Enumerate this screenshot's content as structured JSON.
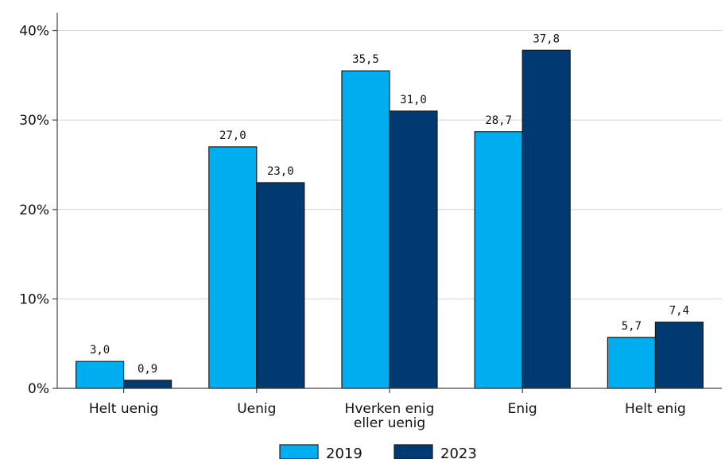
{
  "chart_data": {
    "type": "bar",
    "categories": [
      "Helt uenig",
      "Uenig",
      "Hverken enig eller uenig",
      "Enig",
      "Helt enig"
    ],
    "category_lines": [
      [
        "Helt uenig"
      ],
      [
        "Uenig"
      ],
      [
        "Hverken enig",
        "eller uenig"
      ],
      [
        "Enig"
      ],
      [
        "Helt enig"
      ]
    ],
    "series": [
      {
        "name": "2019",
        "color": "#00aeef",
        "values": [
          3.0,
          27.0,
          35.5,
          28.7,
          5.7
        ],
        "labels": [
          "3,0",
          "27,0",
          "35,5",
          "28,7",
          "5,7"
        ]
      },
      {
        "name": "2023",
        "color": "#003a70",
        "values": [
          0.9,
          23.0,
          31.0,
          37.8,
          7.4
        ],
        "labels": [
          "0,9",
          "23,0",
          "31,0",
          "37,8",
          "7,4"
        ]
      }
    ],
    "ylim": [
      0,
      40
    ],
    "yticks": [
      0,
      10,
      20,
      30,
      40
    ],
    "ytick_labels": [
      "0%",
      "10%",
      "20%",
      "30%",
      "40%"
    ],
    "grid": true,
    "legend_position": "bottom",
    "title": "",
    "xlabel": "",
    "ylabel": ""
  }
}
